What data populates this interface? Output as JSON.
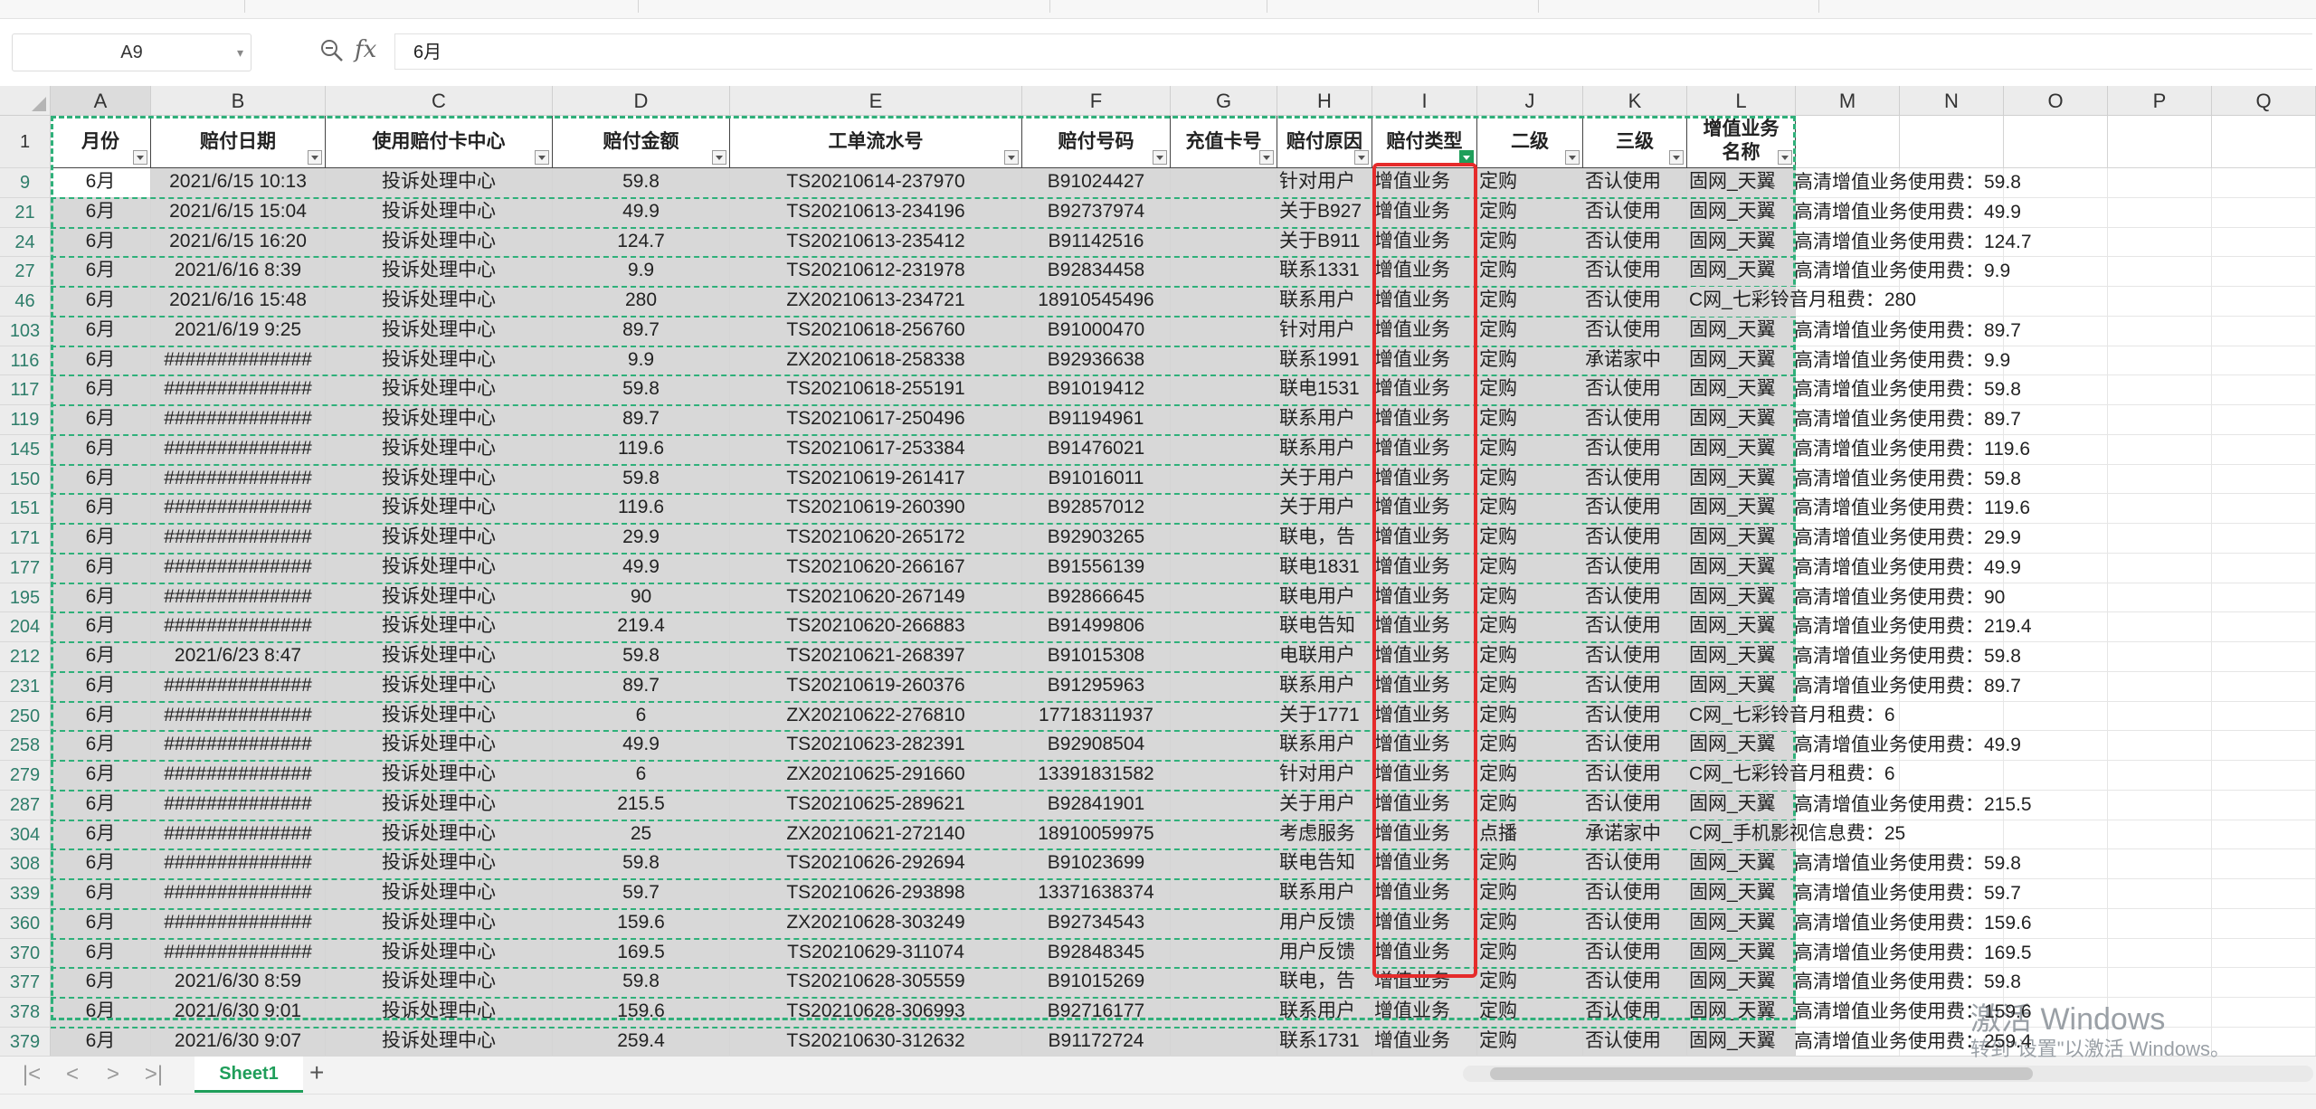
{
  "namebox": {
    "value": "A9"
  },
  "formula": {
    "value": "6月"
  },
  "columns": [
    "A",
    "B",
    "C",
    "D",
    "E",
    "F",
    "G",
    "H",
    "I",
    "J",
    "K",
    "L",
    "M",
    "N",
    "O",
    "P",
    "Q"
  ],
  "header_row_label": "1",
  "headers": [
    "月份",
    "赔付日期",
    "使用赔付卡中心",
    "赔付金额",
    "工单流水号",
    "赔付号码",
    "充值卡号",
    "赔付原因",
    "赔付类型",
    "二级",
    "三级",
    "增值业务名称"
  ],
  "rows": [
    {
      "n": "9",
      "a": "6月",
      "b": "2021/6/15 10:13",
      "c": "投诉处理中心",
      "d": "59.8",
      "e": "TS20210614-237970",
      "f": "B91024427",
      "h": "针对用户",
      "i": "增值业务",
      "j": "定购",
      "k": "否认使用",
      "l": "固网_天翼",
      "m": "高清增值业务使用费：59.8"
    },
    {
      "n": "21",
      "a": "6月",
      "b": "2021/6/15 15:04",
      "c": "投诉处理中心",
      "d": "49.9",
      "e": "TS20210613-234196",
      "f": "B92737974",
      "h": "关于B927",
      "i": "增值业务",
      "j": "定购",
      "k": "否认使用",
      "l": "固网_天翼",
      "m": "高清增值业务使用费：49.9"
    },
    {
      "n": "24",
      "a": "6月",
      "b": "2021/6/15 16:20",
      "c": "投诉处理中心",
      "d": "124.7",
      "e": "TS20210613-235412",
      "f": "B91142516",
      "h": "关于B911",
      "i": "增值业务",
      "j": "定购",
      "k": "否认使用",
      "l": "固网_天翼",
      "m": "高清增值业务使用费：124.7"
    },
    {
      "n": "27",
      "a": "6月",
      "b": "2021/6/16 8:39",
      "c": "投诉处理中心",
      "d": "9.9",
      "e": "TS20210612-231978",
      "f": "B92834458",
      "h": "联系1331",
      "i": "增值业务",
      "j": "定购",
      "k": "否认使用",
      "l": "固网_天翼",
      "m": "高清增值业务使用费：9.9"
    },
    {
      "n": "46",
      "a": "6月",
      "b": "2021/6/16 15:48",
      "c": "投诉处理中心",
      "d": "280",
      "e": "ZX20210613-234721",
      "f": "18910545496",
      "h": "联系用户",
      "i": "增值业务",
      "j": "定购",
      "k": "否认使用",
      "l": "C网_七彩铃音月租费：280",
      "m": ""
    },
    {
      "n": "103",
      "a": "6月",
      "b": "2021/6/19 9:25",
      "c": "投诉处理中心",
      "d": "89.7",
      "e": "TS20210618-256760",
      "f": "B91000470",
      "h": "针对用户",
      "i": "增值业务",
      "j": "定购",
      "k": "否认使用",
      "l": "固网_天翼",
      "m": "高清增值业务使用费：89.7"
    },
    {
      "n": "116",
      "a": "6月",
      "b": "##############",
      "c": "投诉处理中心",
      "d": "9.9",
      "e": "ZX20210618-258338",
      "f": "B92936638",
      "h": "联系1991",
      "i": "增值业务",
      "j": "定购",
      "k": "承诺家中",
      "l": "固网_天翼",
      "m": "高清增值业务使用费：9.9"
    },
    {
      "n": "117",
      "a": "6月",
      "b": "##############",
      "c": "投诉处理中心",
      "d": "59.8",
      "e": "TS20210618-255191",
      "f": "B91019412",
      "h": "联电1531",
      "i": "增值业务",
      "j": "定购",
      "k": "否认使用",
      "l": "固网_天翼",
      "m": "高清增值业务使用费：59.8"
    },
    {
      "n": "119",
      "a": "6月",
      "b": "##############",
      "c": "投诉处理中心",
      "d": "89.7",
      "e": "TS20210617-250496",
      "f": "B91194961",
      "h": "联系用户",
      "i": "增值业务",
      "j": "定购",
      "k": "否认使用",
      "l": "固网_天翼",
      "m": "高清增值业务使用费：89.7"
    },
    {
      "n": "145",
      "a": "6月",
      "b": "##############",
      "c": "投诉处理中心",
      "d": "119.6",
      "e": "TS20210617-253384",
      "f": "B91476021",
      "h": "联系用户",
      "i": "增值业务",
      "j": "定购",
      "k": "否认使用",
      "l": "固网_天翼",
      "m": "高清增值业务使用费：119.6"
    },
    {
      "n": "150",
      "a": "6月",
      "b": "##############",
      "c": "投诉处理中心",
      "d": "59.8",
      "e": "TS20210619-261417",
      "f": "B91016011",
      "h": "关于用户",
      "i": "增值业务",
      "j": "定购",
      "k": "否认使用",
      "l": "固网_天翼",
      "m": "高清增值业务使用费：59.8"
    },
    {
      "n": "151",
      "a": "6月",
      "b": "##############",
      "c": "投诉处理中心",
      "d": "119.6",
      "e": "TS20210619-260390",
      "f": "B92857012",
      "h": "关于用户",
      "i": "增值业务",
      "j": "定购",
      "k": "否认使用",
      "l": "固网_天翼",
      "m": "高清增值业务使用费：119.6"
    },
    {
      "n": "171",
      "a": "6月",
      "b": "##############",
      "c": "投诉处理中心",
      "d": "29.9",
      "e": "TS20210620-265172",
      "f": "B92903265",
      "h": "联电，告",
      "i": "增值业务",
      "j": "定购",
      "k": "否认使用",
      "l": "固网_天翼",
      "m": "高清增值业务使用费：29.9"
    },
    {
      "n": "177",
      "a": "6月",
      "b": "##############",
      "c": "投诉处理中心",
      "d": "49.9",
      "e": "TS20210620-266167",
      "f": "B91556139",
      "h": "联电1831",
      "i": "增值业务",
      "j": "定购",
      "k": "否认使用",
      "l": "固网_天翼",
      "m": "高清增值业务使用费：49.9"
    },
    {
      "n": "195",
      "a": "6月",
      "b": "##############",
      "c": "投诉处理中心",
      "d": "90",
      "e": "TS20210620-267149",
      "f": "B92866645",
      "h": "联电用户",
      "i": "增值业务",
      "j": "定购",
      "k": "否认使用",
      "l": "固网_天翼",
      "m": "高清增值业务使用费：90"
    },
    {
      "n": "204",
      "a": "6月",
      "b": "##############",
      "c": "投诉处理中心",
      "d": "219.4",
      "e": "TS20210620-266883",
      "f": "B91499806",
      "h": "联电告知",
      "i": "增值业务",
      "j": "定购",
      "k": "否认使用",
      "l": "固网_天翼",
      "m": "高清增值业务使用费：219.4"
    },
    {
      "n": "212",
      "a": "6月",
      "b": "2021/6/23 8:47",
      "c": "投诉处理中心",
      "d": "59.8",
      "e": "TS20210621-268397",
      "f": "B91015308",
      "h": "电联用户",
      "i": "增值业务",
      "j": "定购",
      "k": "否认使用",
      "l": "固网_天翼",
      "m": "高清增值业务使用费：59.8"
    },
    {
      "n": "231",
      "a": "6月",
      "b": "##############",
      "c": "投诉处理中心",
      "d": "89.7",
      "e": "TS20210619-260376",
      "f": "B91295963",
      "h": "联系用户",
      "i": "增值业务",
      "j": "定购",
      "k": "否认使用",
      "l": "固网_天翼",
      "m": "高清增值业务使用费：89.7"
    },
    {
      "n": "250",
      "a": "6月",
      "b": "##############",
      "c": "投诉处理中心",
      "d": "6",
      "e": "ZX20210622-276810",
      "f": "17718311937",
      "h": "关于1771",
      "i": "增值业务",
      "j": "定购",
      "k": "否认使用",
      "l": "C网_七彩铃音月租费：6",
      "m": ""
    },
    {
      "n": "258",
      "a": "6月",
      "b": "##############",
      "c": "投诉处理中心",
      "d": "49.9",
      "e": "TS20210623-282391",
      "f": "B92908504",
      "h": "联系用户",
      "i": "增值业务",
      "j": "定购",
      "k": "否认使用",
      "l": "固网_天翼",
      "m": "高清增值业务使用费：49.9"
    },
    {
      "n": "279",
      "a": "6月",
      "b": "##############",
      "c": "投诉处理中心",
      "d": "6",
      "e": "ZX20210625-291660",
      "f": "13391831582",
      "h": "针对用户",
      "i": "增值业务",
      "j": "定购",
      "k": "否认使用",
      "l": "C网_七彩铃音月租费：6",
      "m": ""
    },
    {
      "n": "287",
      "a": "6月",
      "b": "##############",
      "c": "投诉处理中心",
      "d": "215.5",
      "e": "TS20210625-289621",
      "f": "B92841901",
      "h": "关于用户",
      "i": "增值业务",
      "j": "定购",
      "k": "否认使用",
      "l": "固网_天翼",
      "m": "高清增值业务使用费：215.5"
    },
    {
      "n": "304",
      "a": "6月",
      "b": "##############",
      "c": "投诉处理中心",
      "d": "25",
      "e": "ZX20210621-272140",
      "f": "18910059975",
      "h": "考虑服务",
      "i": "增值业务",
      "j": "点播",
      "k": "承诺家中",
      "l": "C网_手机影视信息费：25",
      "m": ""
    },
    {
      "n": "308",
      "a": "6月",
      "b": "##############",
      "c": "投诉处理中心",
      "d": "59.8",
      "e": "TS20210626-292694",
      "f": "B91023699",
      "h": "联电告知",
      "i": "增值业务",
      "j": "定购",
      "k": "否认使用",
      "l": "固网_天翼",
      "m": "高清增值业务使用费：59.8"
    },
    {
      "n": "339",
      "a": "6月",
      "b": "##############",
      "c": "投诉处理中心",
      "d": "59.7",
      "e": "TS20210626-293898",
      "f": "13371638374",
      "h": "联系用户",
      "i": "增值业务",
      "j": "定购",
      "k": "否认使用",
      "l": "固网_天翼",
      "m": "高清增值业务使用费：59.7"
    },
    {
      "n": "360",
      "a": "6月",
      "b": "##############",
      "c": "投诉处理中心",
      "d": "159.6",
      "e": "ZX20210628-303249",
      "f": "B92734543",
      "h": "用户反馈",
      "i": "增值业务",
      "j": "定购",
      "k": "否认使用",
      "l": "固网_天翼",
      "m": "高清增值业务使用费：159.6"
    },
    {
      "n": "370",
      "a": "6月",
      "b": "##############",
      "c": "投诉处理中心",
      "d": "169.5",
      "e": "TS20210629-311074",
      "f": "B92848345",
      "h": "用户反馈",
      "i": "增值业务",
      "j": "定购",
      "k": "否认使用",
      "l": "固网_天翼",
      "m": "高清增值业务使用费：169.5"
    },
    {
      "n": "377",
      "a": "6月",
      "b": "2021/6/30 8:59",
      "c": "投诉处理中心",
      "d": "59.8",
      "e": "TS20210628-305559",
      "f": "B91015269",
      "h": "联电，告",
      "i": "增值业务",
      "j": "定购",
      "k": "否认使用",
      "l": "固网_天翼",
      "m": "高清增值业务使用费：59.8"
    },
    {
      "n": "378",
      "a": "6月",
      "b": "2021/6/30 9:01",
      "c": "投诉处理中心",
      "d": "159.6",
      "e": "TS20210628-306993",
      "f": "B92716177",
      "h": "联系用户",
      "i": "增值业务",
      "j": "定购",
      "k": "否认使用",
      "l": "固网_天翼",
      "m": "高清增值业务使用费：159.6"
    },
    {
      "n": "379",
      "a": "6月",
      "b": "2021/6/30 9:07",
      "c": "投诉处理中心",
      "d": "259.4",
      "e": "TS20210630-312632",
      "f": "B91172724",
      "h": "联系1731",
      "i": "增值业务",
      "j": "定购",
      "k": "否认使用",
      "l": "固网_天翼",
      "m": "高清增值业务使用费：259.4"
    }
  ],
  "sheet_tab": "Sheet1",
  "add_sheet": "+",
  "nav": {
    "first": "|<",
    "prev": "<",
    "next": ">",
    "last": ">|"
  },
  "watermark": {
    "line1": "激活 Windows",
    "line2": "转到\"设置\"以激活 Windows。"
  },
  "colors": {
    "accent": "#1f9e5a",
    "selection_dash": "#2fb07a",
    "highlight_box": "#e52b2b"
  }
}
